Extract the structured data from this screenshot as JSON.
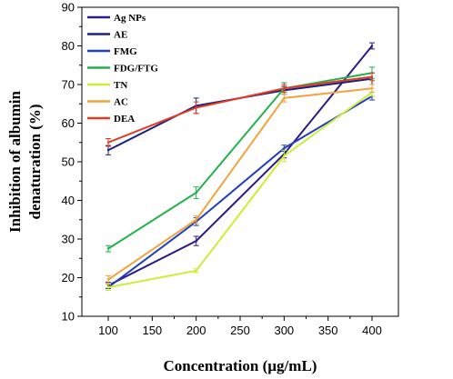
{
  "chart_data": {
    "type": "line",
    "x": [
      100,
      200,
      300,
      400
    ],
    "xlabel": "Concentration (µg/mL)",
    "ylabel_line1": "Inhibition of albumin",
    "ylabel_line2": "denaturation (%)",
    "xlim": [
      70,
      430
    ],
    "ylim": [
      10,
      90
    ],
    "xticks": [
      100,
      150,
      200,
      250,
      300,
      350,
      400
    ],
    "yticks": [
      10,
      20,
      30,
      40,
      50,
      60,
      70,
      80,
      90
    ],
    "grid": false,
    "legend_position": "top-left",
    "series": [
      {
        "name": "Ag NPs",
        "color": "#2e1a87",
        "values": [
          18.0,
          29.5,
          52.0,
          80.0
        ],
        "errors": [
          0.8,
          1.2,
          1.0,
          0.8
        ]
      },
      {
        "name": "AE",
        "color": "#1a237e",
        "values": [
          53.0,
          64.5,
          68.5,
          71.5
        ],
        "errors": [
          1.2,
          2.0,
          1.0,
          1.5
        ]
      },
      {
        "name": "FMG",
        "color": "#1f3fbf",
        "values": [
          17.5,
          34.5,
          53.5,
          67.0
        ],
        "errors": [
          0.8,
          1.0,
          0.8,
          1.0
        ]
      },
      {
        "name": "FDG/FTG",
        "color": "#22b24c",
        "values": [
          27.5,
          42.0,
          69.0,
          73.0
        ],
        "errors": [
          0.8,
          1.5,
          1.5,
          1.5
        ]
      },
      {
        "name": "TN",
        "color": "#ccee33",
        "values": [
          17.5,
          21.8,
          51.5,
          68.0
        ],
        "errors": [
          0.8,
          0.5,
          1.5,
          1.0
        ]
      },
      {
        "name": "AC",
        "color": "#f2a33a",
        "values": [
          19.5,
          35.0,
          66.5,
          69.0
        ],
        "errors": [
          1.0,
          1.0,
          1.0,
          1.0
        ]
      },
      {
        "name": "DEA",
        "color": "#e53a23",
        "values": [
          55.0,
          64.0,
          69.0,
          72.0
        ],
        "errors": [
          1.0,
          1.5,
          1.0,
          1.0
        ]
      }
    ]
  }
}
